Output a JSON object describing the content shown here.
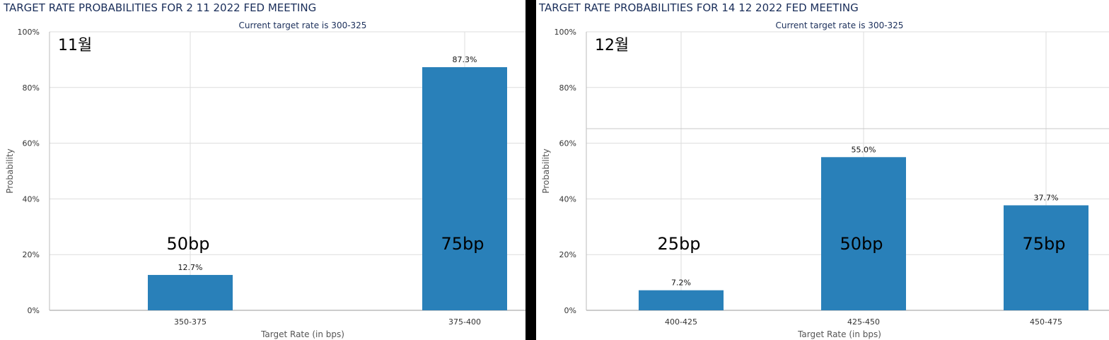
{
  "chart_data": [
    {
      "type": "bar",
      "title": "TARGET RATE PROBABILITIES FOR 2 11 2022 FED MEETING",
      "subtitle": "Current target rate is 300-325",
      "xlabel": "Target Rate (in bps)",
      "ylabel": "Probability",
      "ylim": [
        0,
        100
      ],
      "yticks": [
        "0%",
        "20%",
        "40%",
        "60%",
        "80%",
        "100%"
      ],
      "categories": [
        "350-375",
        "375-400"
      ],
      "values": [
        12.7,
        87.3
      ],
      "data_labels": [
        "12.7%",
        "87.3%"
      ],
      "annotations": [
        "50bp",
        "75bp"
      ],
      "month_label": "11월",
      "bar_color": "#2980b9",
      "grid": true
    },
    {
      "type": "bar",
      "title": "TARGET RATE PROBABILITIES FOR 14 12 2022 FED MEETING",
      "subtitle": "Current target rate is 300-325",
      "xlabel": "Target Rate (in bps)",
      "ylabel": "Probability",
      "ylim": [
        0,
        100
      ],
      "yticks": [
        "0%",
        "20%",
        "40%",
        "60%",
        "80%",
        "100%"
      ],
      "categories": [
        "400-425",
        "425-450",
        "450-475"
      ],
      "values": [
        7.2,
        55.0,
        37.7
      ],
      "data_labels": [
        "7.2%",
        "55.0%",
        "37.7%"
      ],
      "annotations": [
        "25bp",
        "50bp",
        "75bp"
      ],
      "month_label": "12월",
      "bar_color": "#2980b9",
      "grid": true
    }
  ]
}
